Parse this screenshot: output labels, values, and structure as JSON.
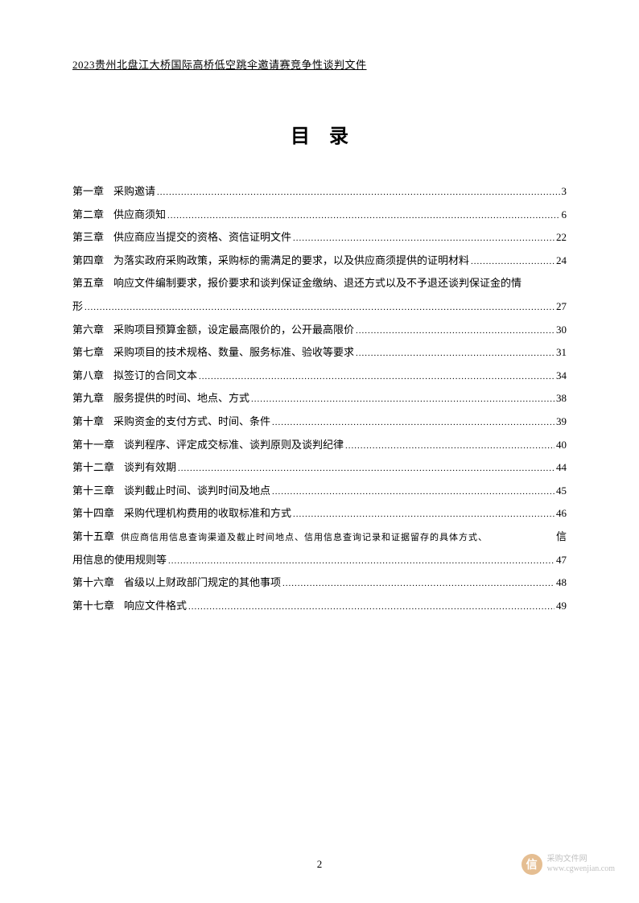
{
  "header": {
    "title": "2023贵州北盘江大桥国际高桥低空跳伞邀请赛竞争性谈判文件"
  },
  "toc": {
    "title": "目录",
    "entries": [
      {
        "chapter": "第一章",
        "text": "采购邀请",
        "page": "3",
        "wrap": false,
        "small": false
      },
      {
        "chapter": "第二章",
        "text": "供应商须知",
        "page": "6",
        "wrap": false,
        "small": false
      },
      {
        "chapter": "第三章",
        "text": "供应商应当提交的资格、资信证明文件",
        "page": "22",
        "wrap": false,
        "small": false
      },
      {
        "chapter": "第四章",
        "text": "为落实政府采购政策，采购标的需满足的要求，以及供应商须提供的证明材料",
        "page": "24",
        "wrap": false,
        "small": false
      },
      {
        "chapter": "第五章",
        "text": "响应文件编制要求，报价要求和谈判保证金缴纳、退还方式以及不予退还谈判保证金的情",
        "text2": "形",
        "page": "27",
        "wrap": true,
        "small": false
      },
      {
        "chapter": "第六章",
        "text": "采购项目预算金额，设定最高限价的，公开最高限价",
        "page": "30",
        "wrap": false,
        "small": false
      },
      {
        "chapter": "第七章",
        "text": "采购项目的技术规格、数量、服务标准、验收等要求",
        "page": "31",
        "wrap": false,
        "small": false
      },
      {
        "chapter": "第八章",
        "text": "拟签订的合同文本",
        "page": "34",
        "wrap": false,
        "small": false
      },
      {
        "chapter": "第九章",
        "text": "服务提供的时间、地点、方式",
        "page": "38",
        "wrap": false,
        "small": false
      },
      {
        "chapter": "第十章",
        "text": "采购资金的支付方式、时间、条件",
        "page": "39",
        "wrap": false,
        "small": false
      },
      {
        "chapter": "第十一章",
        "text": "谈判程序、评定成交标准、谈判原则及谈判纪律",
        "page": "40",
        "wrap": false,
        "small": false
      },
      {
        "chapter": "第十二章",
        "text": "谈判有效期",
        "page": "44",
        "wrap": false,
        "small": false
      },
      {
        "chapter": "第十三章",
        "text": "谈判截止时间、谈判时间及地点",
        "page": "45",
        "wrap": false,
        "small": false
      },
      {
        "chapter": "第十四章",
        "text": "采购代理机构费用的收取标准和方式",
        "page": "46",
        "wrap": false,
        "small": false
      },
      {
        "chapter": "第十五章",
        "text": "供应商信用信息查询渠道及截止时间地点、信用信息查询记录和证据留存的具体方式、",
        "text2end": "信",
        "text3": "用信息的使用规则等",
        "page": "47",
        "wrap": true,
        "small": true
      },
      {
        "chapter": "第十六章",
        "text": "省级以上财政部门规定的其他事项",
        "page": "48",
        "wrap": false,
        "small": false
      },
      {
        "chapter": "第十七章",
        "text": "响应文件格式",
        "page": "49",
        "wrap": false,
        "small": false
      }
    ]
  },
  "footer": {
    "pageNumber": "2"
  },
  "watermark": {
    "iconText": "信",
    "line1": "采购文件网",
    "line2": "www.cgwenjian.com"
  },
  "colors": {
    "background": "#ffffff",
    "text": "#000000",
    "watermarkIcon": "#d4934a",
    "watermarkText": "#999999"
  }
}
